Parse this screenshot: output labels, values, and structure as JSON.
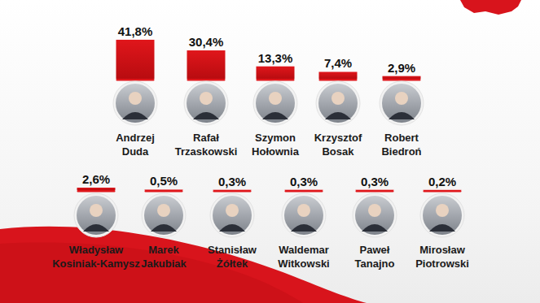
{
  "chart_data": {
    "type": "bar",
    "categories": [
      "Andrzej Duda",
      "Rafał Trzaskowski",
      "Szymon Hołownia",
      "Krzysztof Bosak",
      "Robert Biedroń",
      "Władysław Kosiniak-Kamysz",
      "Marek Jakubiak",
      "Stanisław Żółtek",
      "Waldemar Witkowski",
      "Paweł Tanajno",
      "Mirosław Piotrowski"
    ],
    "values": [
      41.8,
      30.4,
      13.3,
      7.4,
      2.9,
      2.6,
      0.5,
      0.3,
      0.3,
      0.3,
      0.2
    ],
    "value_labels": [
      "41,8%",
      "30,4%",
      "13,3%",
      "7,4%",
      "2,9%",
      "2,6%",
      "0,5%",
      "0,3%",
      "0,3%",
      "0,3%",
      "0,2%"
    ],
    "color": "#e0161b",
    "data_labels": true,
    "tick_labels": false
  }
}
